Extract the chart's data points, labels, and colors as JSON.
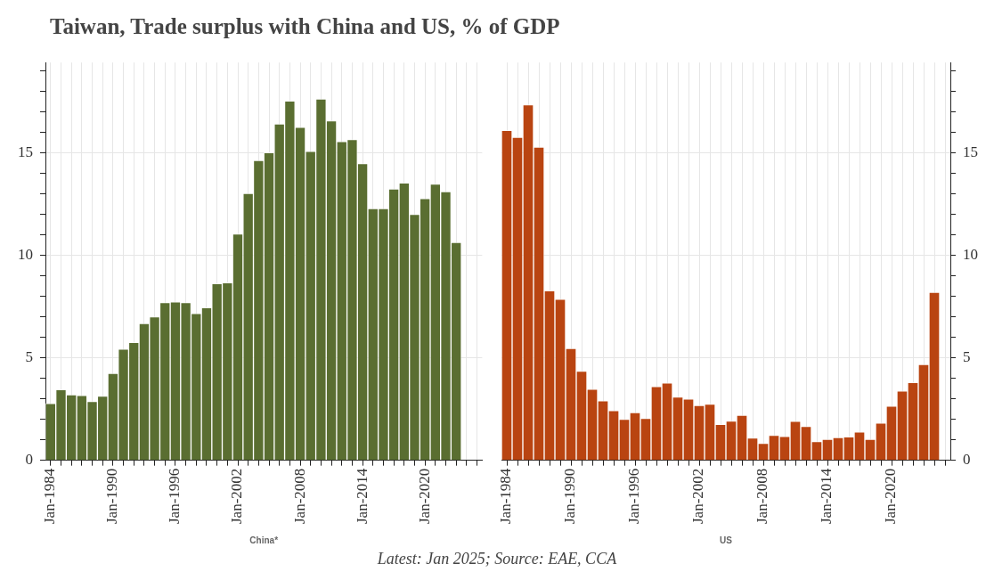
{
  "chart_data": [
    {
      "type": "bar",
      "title": "Taiwan, Trade surplus with China and US, % of GDP",
      "xlabel": "China*",
      "annotations": [
        "Latest: Jan 2025; Source: EAE, CCA"
      ],
      "categories": [
        "Jan-1984",
        null,
        null,
        null,
        null,
        null,
        "Jan-1990",
        null,
        null,
        null,
        null,
        null,
        "Jan-1996",
        null,
        null,
        null,
        null,
        null,
        "Jan-2002",
        null,
        null,
        null,
        null,
        null,
        "Jan-2008",
        null,
        null,
        null,
        null,
        null,
        "Jan-2014",
        null,
        null,
        null,
        null,
        null,
        "Jan-2020",
        null,
        null,
        null,
        null,
        null
      ],
      "series": [
        {
          "color": "#5a6e31",
          "values": [
            2.77,
            3.45,
            3.2,
            3.16,
            2.87,
            3.13,
            4.24,
            5.42,
            5.75,
            6.67,
            7.0,
            7.7,
            7.73,
            7.69,
            7.16,
            7.44,
            8.62,
            8.66,
            11.04,
            13.02,
            14.63,
            15.01,
            16.41,
            17.53,
            16.24,
            15.07,
            17.62,
            16.56,
            15.55,
            15.65,
            14.47,
            12.28,
            12.28,
            13.24,
            13.53,
            12.0,
            12.77,
            13.47,
            13.11,
            10.63,
            null,
            null
          ]
        }
      ],
      "ylim": [
        0,
        19.4
      ],
      "yticks": [
        0,
        {
          "value": 1,
          "label": null
        },
        {
          "value": 2,
          "label": null
        },
        {
          "value": 3,
          "label": null
        },
        {
          "value": 4,
          "label": null
        },
        5,
        {
          "value": 6,
          "label": null
        },
        {
          "value": 7,
          "label": null
        },
        {
          "value": 8,
          "label": null
        },
        {
          "value": 9,
          "label": null
        },
        10,
        {
          "value": 11,
          "label": null
        },
        {
          "value": 12,
          "label": null
        },
        {
          "value": 13,
          "label": null
        },
        {
          "value": 14,
          "label": null
        },
        15,
        {
          "value": 16,
          "label": null
        },
        {
          "value": 17,
          "label": null
        },
        {
          "value": 18,
          "label": null
        },
        {
          "value": 19,
          "label": null
        }
      ],
      "grid": true,
      "legend": false
    },
    {
      "type": "bar",
      "xlabel": "US",
      "categories": [
        "Jan-1984",
        null,
        null,
        null,
        null,
        null,
        "Jan-1990",
        null,
        null,
        null,
        null,
        null,
        "Jan-1996",
        null,
        null,
        null,
        null,
        null,
        "Jan-2002",
        null,
        null,
        null,
        null,
        null,
        "Jan-2008",
        null,
        null,
        null,
        null,
        null,
        "Jan-2014",
        null,
        null,
        null,
        null,
        null,
        "Jan-2020",
        null,
        null,
        null,
        null,
        null
      ],
      "series": [
        {
          "color": "#b94411",
          "axis": "y2",
          "values": [
            16.09,
            15.76,
            17.34,
            15.28,
            8.27,
            7.86,
            5.46,
            4.35,
            3.47,
            2.9,
            2.43,
            2.0,
            2.33,
            2.05,
            3.6,
            3.77,
            3.09,
            2.99,
            2.68,
            2.74,
            1.75,
            1.92,
            2.2,
            1.09,
            0.83,
            1.22,
            1.17,
            1.91,
            1.65,
            0.92,
            1.03,
            1.11,
            1.14,
            1.38,
            1.02,
            1.82,
            2.64,
            3.38,
            3.8,
            4.67,
            8.2,
            null
          ]
        }
      ],
      "y2lim": [
        0,
        19.4
      ],
      "y2ticks": [
        0,
        {
          "value": 1,
          "label": null
        },
        {
          "value": 2,
          "label": null
        },
        {
          "value": 3,
          "label": null
        },
        {
          "value": 4,
          "label": null
        },
        5,
        {
          "value": 6,
          "label": null
        },
        {
          "value": 7,
          "label": null
        },
        {
          "value": 8,
          "label": null
        },
        {
          "value": 9,
          "label": null
        },
        10,
        {
          "value": 11,
          "label": null
        },
        {
          "value": 12,
          "label": null
        },
        {
          "value": 13,
          "label": null
        },
        {
          "value": 14,
          "label": null
        },
        15,
        {
          "value": 16,
          "label": null
        },
        {
          "value": 17,
          "label": null
        },
        {
          "value": 18,
          "label": null
        },
        {
          "value": 19,
          "label": null
        }
      ],
      "grid": true,
      "legend": false
    }
  ]
}
